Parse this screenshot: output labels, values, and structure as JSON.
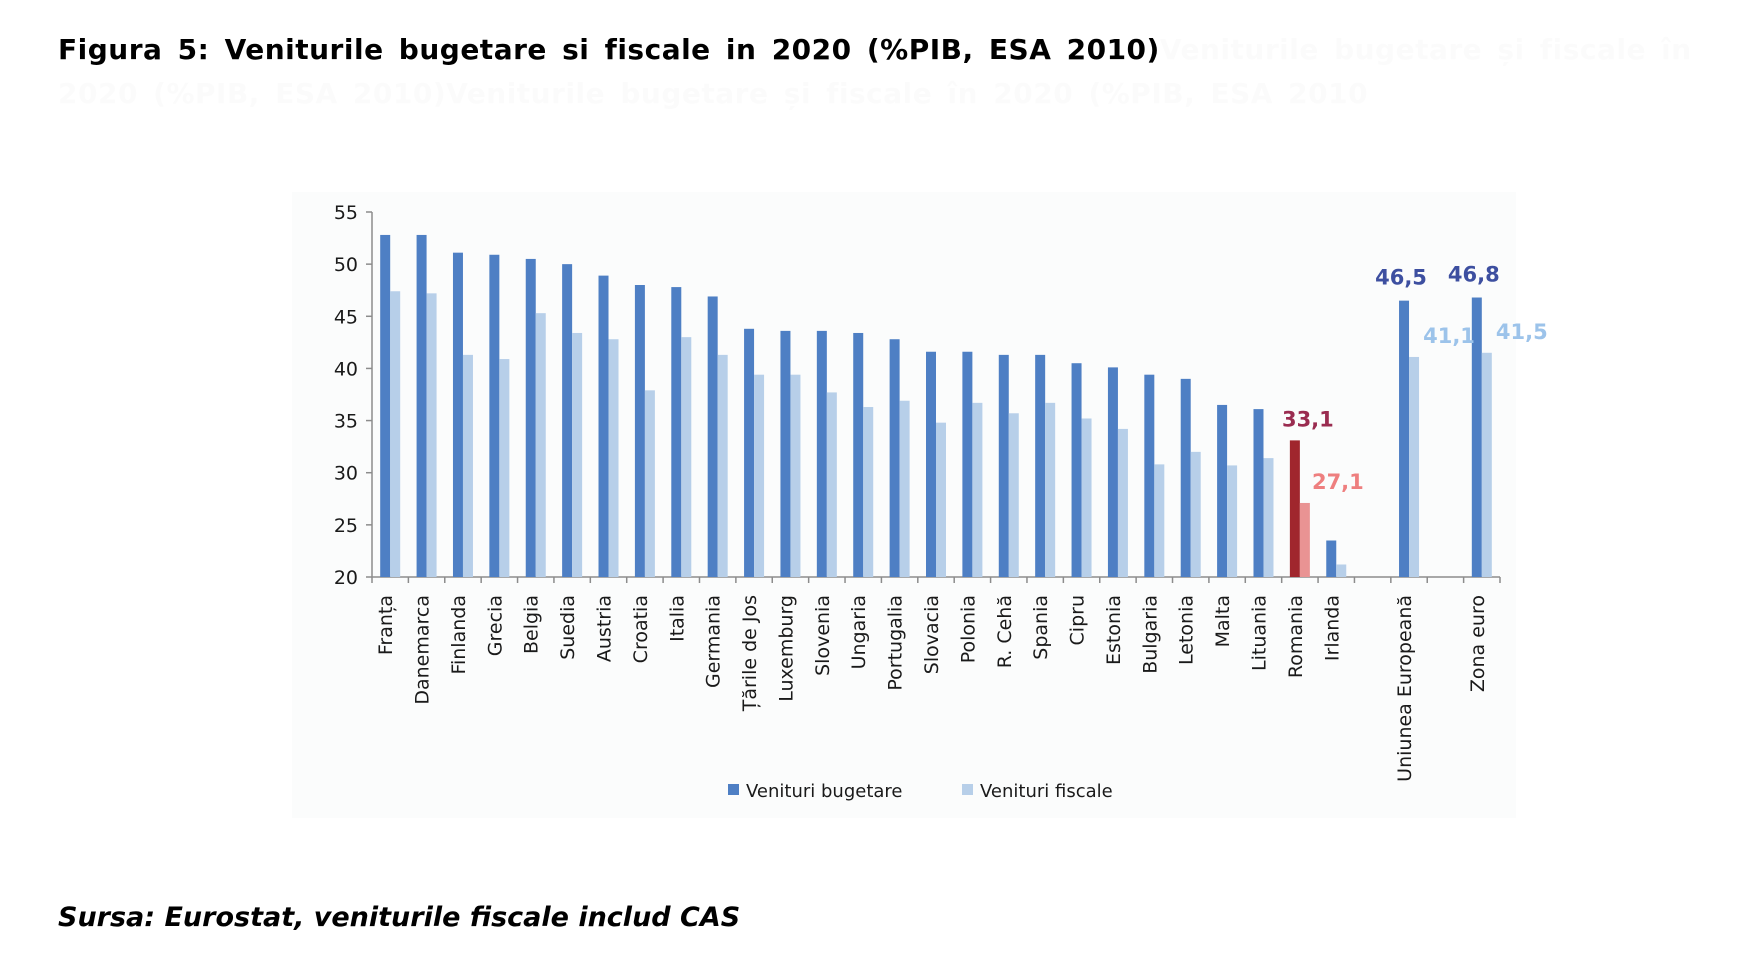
{
  "figure": {
    "title": "Figura 5: Veniturile bugetare si fiscale in 2020 (%PIB, ESA 2010)",
    "ghost_text_1": "Veniturile bugetare și fiscale în 2020 (%PIB, ESA 2010)",
    "ghost_text_2": "Veniturile bugetare și fiscale în 2020 (%PIB, ESA 2010",
    "source": "Sursa: Eurostat, veniturile fiscale includ CAS"
  },
  "colors": {
    "budget": "#4e7fc4",
    "fiscal": "#b7cfe9",
    "romania_budget": "#a0262d",
    "romania_fiscal": "#e99393",
    "label_budget_aggregate": "#3d4fa0",
    "label_fiscal_aggregate": "#9cc3ea",
    "label_romania_budget": "#9a2c50",
    "label_romania_fiscal": "#ee7f7f",
    "axis": "#8c8c8c"
  },
  "chart_data": {
    "type": "bar",
    "title": "",
    "xlabel": "",
    "ylabel": "",
    "ylim": [
      20,
      55
    ],
    "yticks": [
      20,
      25,
      30,
      35,
      40,
      45,
      50,
      55
    ],
    "grid": false,
    "legend_position": "bottom-center",
    "categories": [
      "Franța",
      "Danemarca",
      "Finlanda",
      "Grecia",
      "Belgia",
      "Suedia",
      "Austria",
      "Croatia",
      "Italia",
      "Germania",
      "Țările de Jos",
      "Luxemburg",
      "Slovenia",
      "Ungaria",
      "Portugalia",
      "Slovacia",
      "Polonia",
      "R. Cehă",
      "Spania",
      "Cipru",
      "Estonia",
      "Bulgaria",
      "Letonia",
      "Malta",
      "Lituania",
      "Romania",
      "Irlanda",
      "",
      "Uniunea Europeană",
      "",
      "Zona euro"
    ],
    "series": [
      {
        "name": "Venituri bugetare",
        "values": [
          52.8,
          52.8,
          51.1,
          50.9,
          50.5,
          50.0,
          48.9,
          48.0,
          47.8,
          46.9,
          43.8,
          43.6,
          43.6,
          43.4,
          42.8,
          41.6,
          41.6,
          41.3,
          41.3,
          40.5,
          40.1,
          39.4,
          39.0,
          36.5,
          36.1,
          33.1,
          23.5,
          null,
          46.5,
          null,
          46.8
        ]
      },
      {
        "name": "Venituri fiscale",
        "values": [
          47.4,
          47.2,
          41.3,
          40.9,
          45.3,
          43.4,
          42.8,
          37.9,
          43.0,
          41.3,
          39.4,
          39.4,
          37.7,
          36.3,
          36.9,
          34.8,
          36.7,
          35.7,
          36.7,
          35.2,
          34.2,
          30.8,
          32.0,
          30.7,
          31.4,
          27.1,
          21.2,
          null,
          41.1,
          null,
          41.5
        ]
      }
    ],
    "data_labels": [
      {
        "category": "Romania",
        "series": "Venituri bugetare",
        "text": "33,1"
      },
      {
        "category": "Romania",
        "series": "Venituri fiscale",
        "text": "27,1"
      },
      {
        "category": "Uniunea Europeană",
        "series": "Venituri bugetare",
        "text": "46,5"
      },
      {
        "category": "Uniunea Europeană",
        "series": "Venituri fiscale",
        "text": "41,1"
      },
      {
        "category": "Zona euro",
        "series": "Venituri bugetare",
        "text": "46,8"
      },
      {
        "category": "Zona euro",
        "series": "Venituri fiscale",
        "text": "41,5"
      }
    ],
    "highlight_category": "Romania"
  }
}
